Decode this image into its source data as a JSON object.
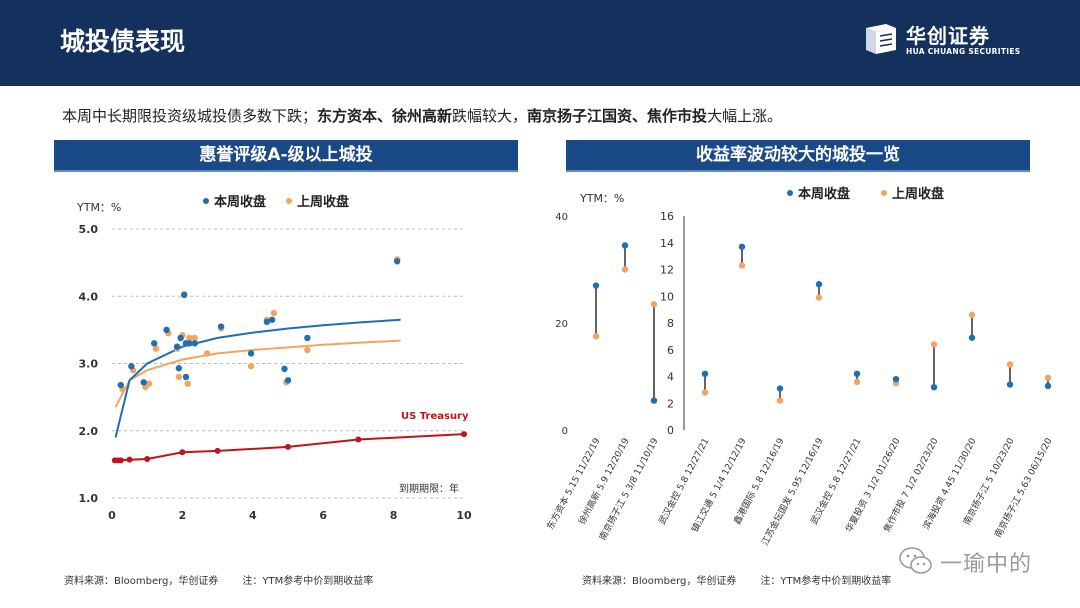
{
  "header": {
    "title": "城投债表现",
    "logo_cn": "华创证券",
    "logo_en": "HUA CHUANG SECURITIES"
  },
  "summary": {
    "part1": "本周中长期限投资级城投债多数下跌；",
    "bold1": "东方资本、徐州高新",
    "part2": "跌幅较大，",
    "bold2": "南京扬子江国资、焦作市投",
    "part3": "大幅上涨。"
  },
  "left_panel": {
    "header": "惠誉评级A-级以上城投",
    "source": "资料来源：Bloomberg，华创证券",
    "note": "注：YTM参考中价到期收益率"
  },
  "right_panel": {
    "header": "收益率波动较大的城投一览",
    "source": "资料来源：Bloomberg，华创证券",
    "note": "注：YTM参考中价到期收益率"
  },
  "watermark": "一瑜中的",
  "colors": {
    "this_week": "#1f6fb5",
    "last_week": "#f4a460",
    "treasury": "#c0141c",
    "header_bg": "#14315e",
    "panel_header": "#1a4a86"
  },
  "chart_data": [
    {
      "type": "scatter",
      "title": "惠誉评级A-级以上城投",
      "ylabel": "YTM：%",
      "xlabel": "到期期限：年",
      "xlim": [
        0,
        10
      ],
      "ylim": [
        1.0,
        5.0
      ],
      "xticks": [
        "0",
        "2",
        "4",
        "6",
        "8",
        "10"
      ],
      "yticks": [
        "1.0",
        "2.0",
        "3.0",
        "4.0",
        "5.0"
      ],
      "legend": [
        "本周收盘",
        "上周收盘"
      ],
      "treasury_label": "US Treasury",
      "series": [
        {
          "name": "本周收盘",
          "points": [
            [
              0.25,
              2.68
            ],
            [
              0.55,
              2.96
            ],
            [
              0.9,
              2.72
            ],
            [
              1.2,
              3.3
            ],
            [
              1.55,
              3.5
            ],
            [
              1.85,
              3.25
            ],
            [
              1.9,
              2.93
            ],
            [
              1.95,
              3.38
            ],
            [
              2.05,
              4.02
            ],
            [
              2.1,
              2.8
            ],
            [
              2.1,
              3.3
            ],
            [
              2.2,
              3.3
            ],
            [
              2.35,
              3.3
            ],
            [
              3.1,
              3.55
            ],
            [
              3.95,
              3.15
            ],
            [
              4.4,
              3.62
            ],
            [
              4.55,
              3.65
            ],
            [
              4.9,
              2.92
            ],
            [
              5.0,
              2.75
            ],
            [
              5.55,
              3.38
            ],
            [
              8.1,
              4.52
            ]
          ]
        },
        {
          "name": "上周收盘",
          "points": [
            [
              0.3,
              2.62
            ],
            [
              0.6,
              2.9
            ],
            [
              0.95,
              2.65
            ],
            [
              1.05,
              2.7
            ],
            [
              1.25,
              3.22
            ],
            [
              1.6,
              3.45
            ],
            [
              1.85,
              3.22
            ],
            [
              1.9,
              2.8
            ],
            [
              2.0,
              3.42
            ],
            [
              2.05,
              4.03
            ],
            [
              2.15,
              2.7
            ],
            [
              2.2,
              3.38
            ],
            [
              2.35,
              3.38
            ],
            [
              2.7,
              3.15
            ],
            [
              3.1,
              3.52
            ],
            [
              3.95,
              2.96
            ],
            [
              4.4,
              3.65
            ],
            [
              4.6,
              3.75
            ],
            [
              4.95,
              2.72
            ],
            [
              5.55,
              3.2
            ],
            [
              8.1,
              4.55
            ]
          ]
        },
        {
          "name": "本周收盘拟合",
          "points": [
            [
              0.1,
              1.9
            ],
            [
              0.5,
              2.75
            ],
            [
              1,
              3.0
            ],
            [
              2,
              3.25
            ],
            [
              3,
              3.38
            ],
            [
              4,
              3.46
            ],
            [
              5,
              3.52
            ],
            [
              6,
              3.57
            ],
            [
              7,
              3.61
            ],
            [
              8.2,
              3.65
            ]
          ]
        },
        {
          "name": "上周收盘拟合",
          "points": [
            [
              0.1,
              2.35
            ],
            [
              0.5,
              2.75
            ],
            [
              1,
              2.9
            ],
            [
              2,
              3.06
            ],
            [
              3,
              3.15
            ],
            [
              4,
              3.2
            ],
            [
              5,
              3.24
            ],
            [
              6,
              3.28
            ],
            [
              7,
              3.31
            ],
            [
              8.2,
              3.34
            ]
          ]
        },
        {
          "name": "US Treasury",
          "points": [
            [
              0.08,
              1.56
            ],
            [
              0.17,
              1.56
            ],
            [
              0.25,
              1.56
            ],
            [
              0.5,
              1.57
            ],
            [
              1,
              1.58
            ],
            [
              2,
              1.68
            ],
            [
              3,
              1.7
            ],
            [
              5,
              1.76
            ],
            [
              7,
              1.87
            ],
            [
              10,
              1.95
            ]
          ]
        }
      ]
    },
    {
      "type": "dumbbell",
      "title": "收益率波动较大的城投一览",
      "ylabel": "YTM：%",
      "legend": [
        "本周收盘",
        "上周收盘"
      ],
      "left_axis": {
        "ylim": [
          0,
          40
        ],
        "yticks": [
          "0",
          "20",
          "40"
        ]
      },
      "right_axis": {
        "ylim": [
          0,
          16
        ],
        "yticks": [
          "0",
          "2",
          "4",
          "6",
          "8",
          "10",
          "12",
          "14",
          "16"
        ]
      },
      "categories": [
        "东方资本 5.15 11/22/19",
        "徐州高新 5.9 12/20/19",
        "南京扬子江  5 3/8 11/10/19",
        "武汉金控 5.8 12/27/21",
        "镇江交通 5 1/4 12/12/19",
        "鑫港国际 5.8 12/16/19",
        "江苏金坛国发 5.95 12/16/19",
        "武汉金控 5.8 12/27/21",
        "华夏投资 3 1/2 01/26/20",
        "焦作市投 7 1/2 02/23/20",
        "滨海投资 4.45 11/30/20",
        "南京扬子江  5 10/23/20",
        "南京扬子江 5.63 06/15/20"
      ],
      "axis_side": [
        "left",
        "left",
        "left",
        "right",
        "right",
        "right",
        "right",
        "right",
        "right",
        "right",
        "right",
        "right",
        "right"
      ],
      "this_week": [
        27.0,
        34.5,
        5.5,
        4.2,
        13.7,
        3.1,
        10.9,
        4.2,
        3.8,
        3.2,
        6.9,
        3.4,
        3.3
      ],
      "last_week": [
        17.5,
        30.0,
        23.5,
        2.8,
        12.3,
        2.2,
        9.9,
        3.6,
        3.5,
        6.4,
        8.6,
        4.9,
        3.9
      ]
    }
  ]
}
